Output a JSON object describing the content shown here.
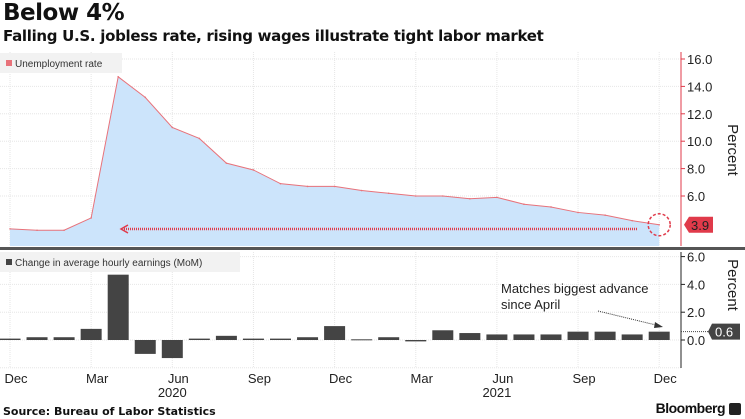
{
  "title": "Below 4%",
  "subtitle": "Falling U.S. jobless rate, rising wages illustrate tight labor market",
  "source": "Source: Bureau of Labor Statistics",
  "brand": "Bloomberg",
  "colors": {
    "line": "#e8727a",
    "area": "#cce4fb",
    "bar": "#444444",
    "accent": "#e03a4a"
  },
  "chart_data": [
    {
      "type": "area",
      "title": "Unemployment rate",
      "legend": "Unemployment rate",
      "ylabel": "Percent",
      "ylim": [
        2.3,
        16.5
      ],
      "yticks": [
        "16.0",
        "14.0",
        "12.0",
        "10.0",
        "8.0",
        "6.0"
      ],
      "ytick_values": [
        16,
        14,
        12,
        10,
        8,
        6
      ],
      "x": [
        "Dec 2019",
        "Jan 2020",
        "Feb 2020",
        "Mar 2020",
        "Apr 2020",
        "May 2020",
        "Jun 2020",
        "Jul 2020",
        "Aug 2020",
        "Sep 2020",
        "Oct 2020",
        "Nov 2020",
        "Dec 2020",
        "Jan 2021",
        "Feb 2021",
        "Mar 2021",
        "Apr 2021",
        "May 2021",
        "Jun 2021",
        "Jul 2021",
        "Aug 2021",
        "Sep 2021",
        "Oct 2021",
        "Nov 2021",
        "Dec 2021"
      ],
      "values": [
        3.6,
        3.5,
        3.5,
        4.4,
        14.7,
        13.2,
        11.0,
        10.2,
        8.4,
        7.9,
        6.9,
        6.7,
        6.7,
        6.4,
        6.2,
        6.0,
        6.0,
        5.8,
        5.9,
        5.4,
        5.2,
        4.8,
        4.6,
        4.2,
        3.9
      ],
      "last_value_label": "3.9"
    },
    {
      "type": "bar",
      "title": "Change in average hourly earnings (MoM)",
      "legend": "Change in average hourly earnings (MoM)",
      "ylabel": "Percent",
      "ylim": [
        -2,
        6.5
      ],
      "yticks": [
        "6.0",
        "4.0",
        "2.0",
        "0.0"
      ],
      "ytick_values": [
        6,
        4,
        2,
        0
      ],
      "values": [
        0.1,
        0.2,
        0.2,
        0.8,
        4.7,
        -1.0,
        -1.3,
        0.1,
        0.3,
        0.1,
        0.1,
        0.2,
        1.0,
        0.05,
        0.2,
        -0.1,
        0.7,
        0.5,
        0.4,
        0.4,
        0.4,
        0.6,
        0.6,
        0.4,
        0.6
      ],
      "last_value_label": "0.6",
      "annotation": [
        "Matches biggest advance",
        "since April"
      ]
    }
  ],
  "xaxis": {
    "ticks": [
      {
        "label": "Dec",
        "i": 0
      },
      {
        "label": "Mar",
        "i": 3
      },
      {
        "label": "Jun",
        "i": 6
      },
      {
        "label": "Sep",
        "i": 9
      },
      {
        "label": "Dec",
        "i": 12
      },
      {
        "label": "Mar",
        "i": 15
      },
      {
        "label": "Jun",
        "i": 18
      },
      {
        "label": "Sep",
        "i": 21
      },
      {
        "label": "Dec",
        "i": 24
      }
    ],
    "years": [
      {
        "label": "2020",
        "i": 6
      },
      {
        "label": "2021",
        "i": 18
      }
    ]
  }
}
